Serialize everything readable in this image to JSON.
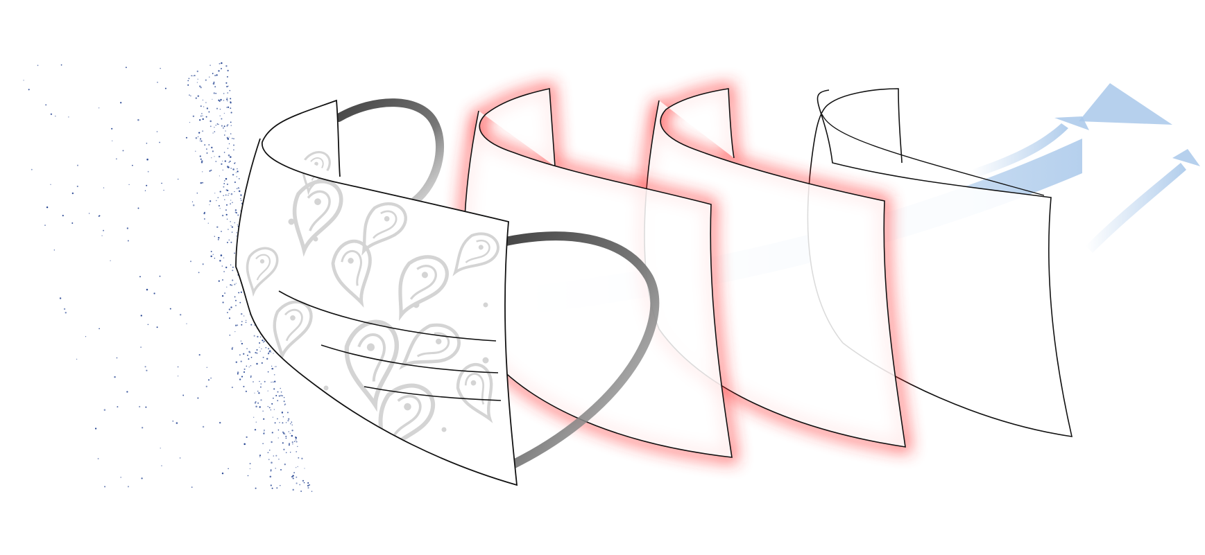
{
  "diagram": {
    "subject": "multi-layer-face-mask-filtration",
    "layers": [
      {
        "id": "outer-fabric",
        "pattern": "paisley",
        "glow": false
      },
      {
        "id": "filter-layer-1",
        "pattern": "none",
        "glow": true
      },
      {
        "id": "filter-layer-2",
        "pattern": "none",
        "glow": true
      },
      {
        "id": "inner-layer",
        "pattern": "none",
        "glow": false
      }
    ],
    "colors": {
      "particles": "#1f3f8f",
      "glow": "#ff2a2a",
      "airflow": "#a9c8ea",
      "outline": "#111111",
      "paisley": "#d4d4d4",
      "strap": "#555555"
    },
    "icons": [
      "particle-cloud-icon",
      "airflow-arrow-icon",
      "ear-loop-icon",
      "paisley-pattern-icon"
    ]
  }
}
